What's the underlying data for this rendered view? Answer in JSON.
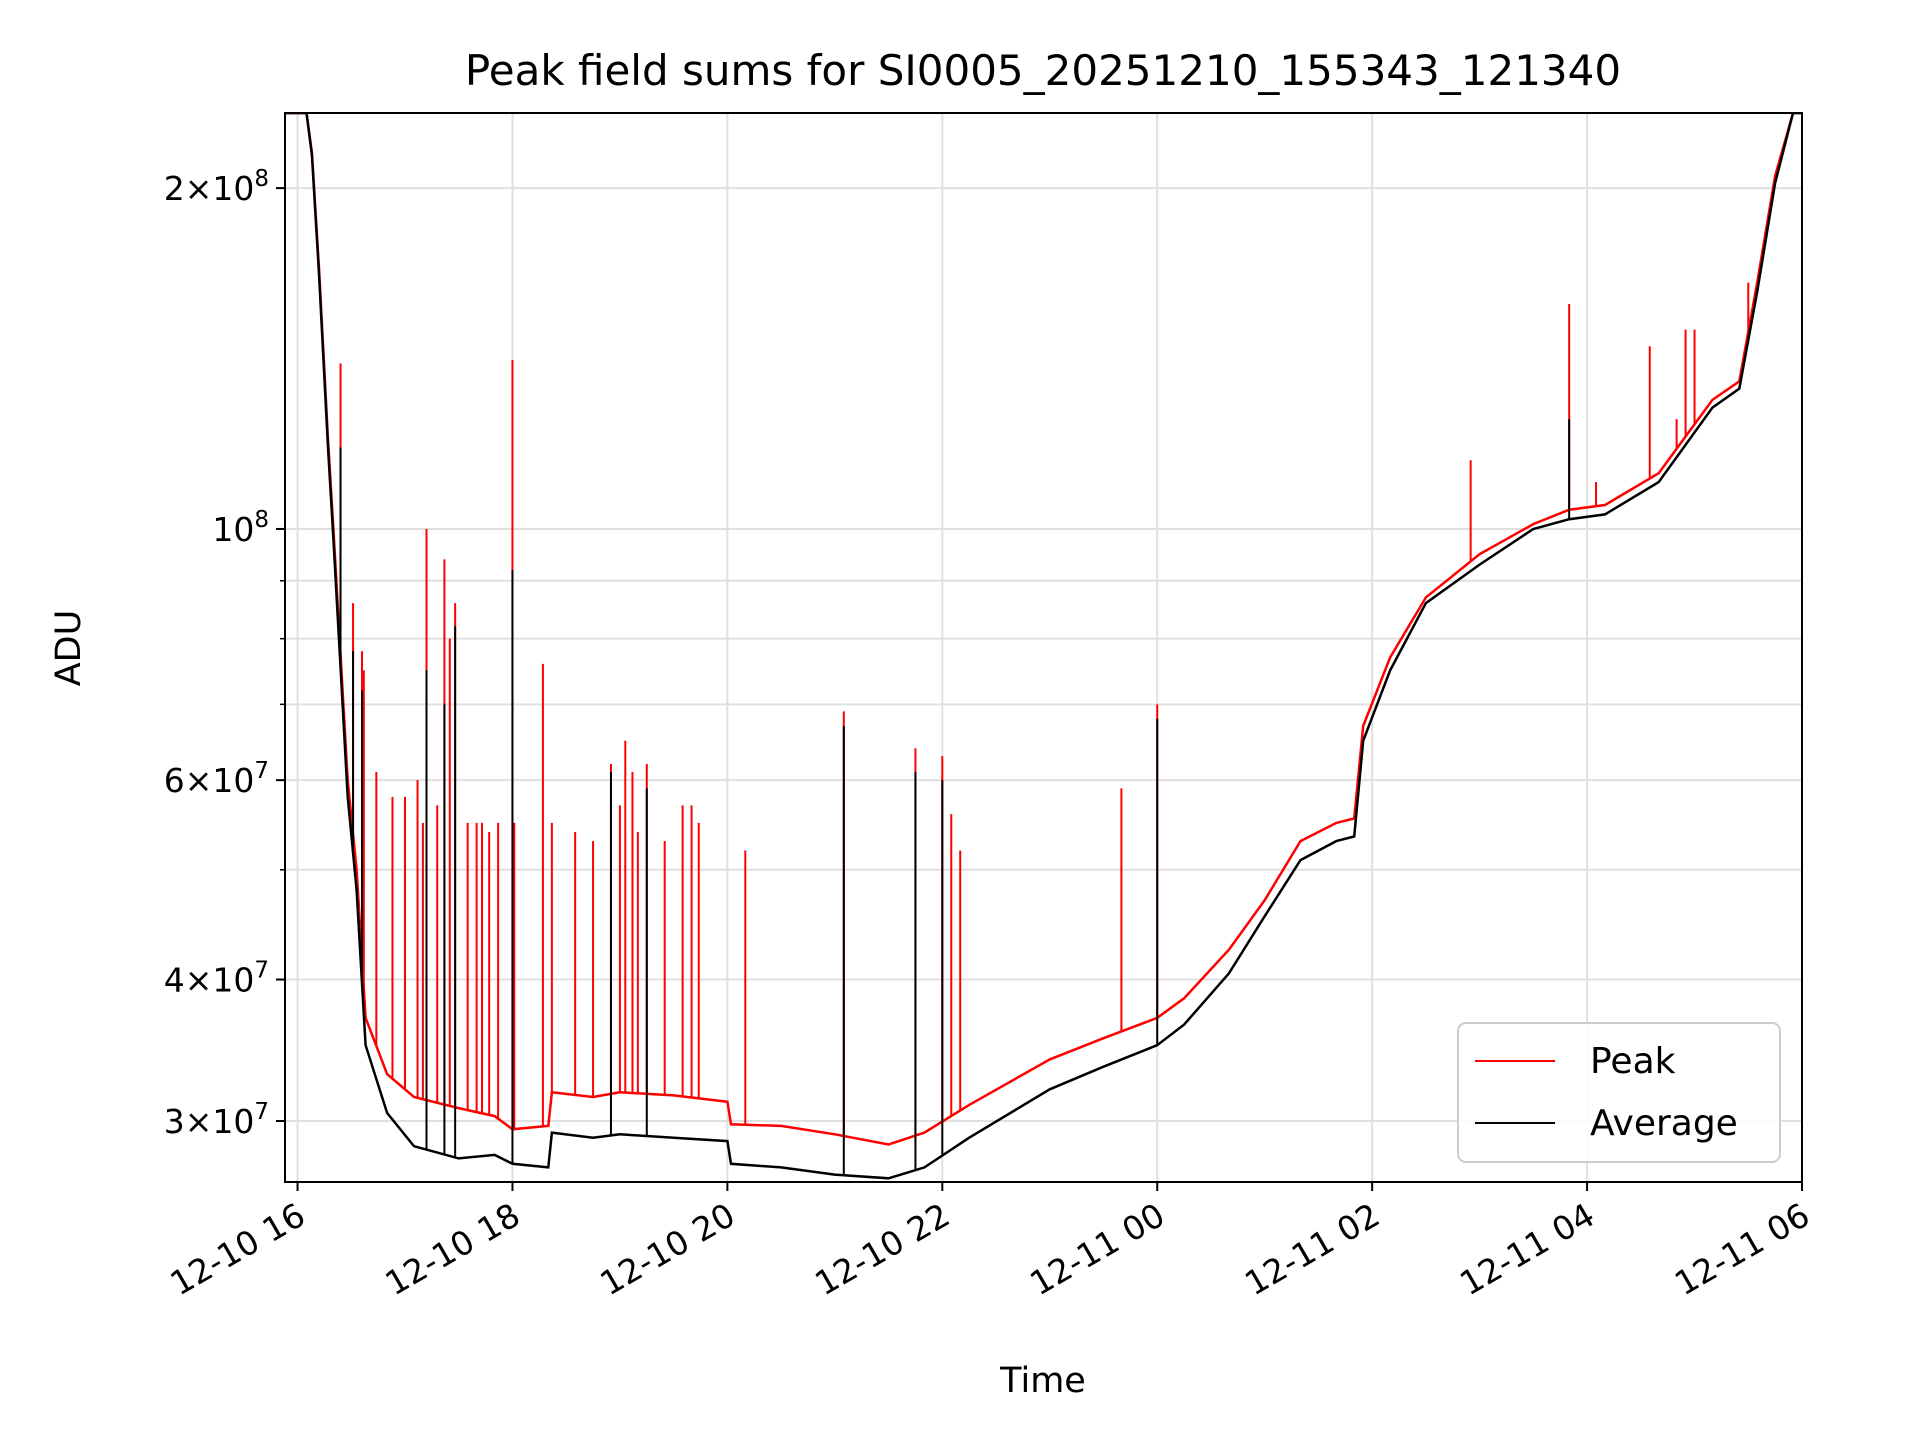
{
  "chart_data": {
    "type": "line",
    "title": "Peak field sums for SI0005_20251210_155343_121340",
    "xlabel": "Time",
    "ylabel": "ADU",
    "yscale": "log",
    "ylim": [
      26500000,
      233000000
    ],
    "xlim": [
      "2025-12-10T15:53",
      "2025-12-11T06:00"
    ],
    "grid": true,
    "legend_position": "lower right",
    "x_ticks": [
      "2025-12-10T16:00",
      "2025-12-10T18:00",
      "2025-12-10T20:00",
      "2025-12-10T22:00",
      "2025-12-11T00:00",
      "2025-12-11T02:00",
      "2025-12-11T04:00",
      "2025-12-11T06:00"
    ],
    "x_tick_labels": [
      "12-10 16",
      "12-10 18",
      "12-10 20",
      "12-10 22",
      "12-11 00",
      "12-11 02",
      "12-11 04",
      "12-11 06"
    ],
    "y_ticks": [
      {
        "value": 30000000,
        "mantissa": "3",
        "exponent": "7"
      },
      {
        "value": 40000000,
        "mantissa": "4",
        "exponent": "7"
      },
      {
        "value": 60000000,
        "mantissa": "6",
        "exponent": "7"
      },
      {
        "value": 100000000,
        "mantissa": "",
        "exponent": "8"
      },
      {
        "value": 200000000,
        "mantissa": "2",
        "exponent": "8"
      }
    ],
    "y_minor_ticks": [
      50000000,
      70000000,
      80000000,
      90000000
    ],
    "colors": {
      "peak": "#ff0000",
      "average": "#000000",
      "grid": "#e0e0e0"
    },
    "series": [
      {
        "name": "Peak",
        "color": "#ff0000",
        "points": [
          [
            "2025-12-10T15:53",
            233000000
          ],
          [
            "2025-12-10T16:05",
            233000000
          ],
          [
            "2025-12-10T16:08",
            215000000
          ],
          [
            "2025-12-10T16:12",
            170000000
          ],
          [
            "2025-12-10T16:17",
            120000000
          ],
          [
            "2025-12-10T16:20",
            100000000
          ],
          [
            "2025-12-10T16:28",
            60000000
          ],
          [
            "2025-12-10T16:33",
            50000000
          ],
          [
            "2025-12-10T16:38",
            37000000
          ],
          [
            "2025-12-10T16:50",
            33000000
          ],
          [
            "2025-12-10T17:05",
            31500000
          ],
          [
            "2025-12-10T17:30",
            30800000
          ],
          [
            "2025-12-10T17:50",
            30300000
          ],
          [
            "2025-12-10T18:00",
            29500000
          ],
          [
            "2025-12-10T18:20",
            29700000
          ],
          [
            "2025-12-10T18:22",
            31800000
          ],
          [
            "2025-12-10T18:45",
            31500000
          ],
          [
            "2025-12-10T19:00",
            31800000
          ],
          [
            "2025-12-10T19:30",
            31600000
          ],
          [
            "2025-12-10T20:00",
            31200000
          ],
          [
            "2025-12-10T20:02",
            29800000
          ],
          [
            "2025-12-10T20:30",
            29700000
          ],
          [
            "2025-12-10T21:00",
            29200000
          ],
          [
            "2025-12-10T21:30",
            28600000
          ],
          [
            "2025-12-10T21:50",
            29300000
          ],
          [
            "2025-12-10T22:15",
            31000000
          ],
          [
            "2025-12-10T23:00",
            34000000
          ],
          [
            "2025-12-10T23:30",
            35500000
          ],
          [
            "2025-12-11T00:00",
            37000000
          ],
          [
            "2025-12-11T00:15",
            38500000
          ],
          [
            "2025-12-11T00:40",
            42500000
          ],
          [
            "2025-12-11T01:00",
            47000000
          ],
          [
            "2025-12-11T01:20",
            53000000
          ],
          [
            "2025-12-11T01:40",
            55000000
          ],
          [
            "2025-12-11T01:50",
            55500000
          ],
          [
            "2025-12-11T01:55",
            67000000
          ],
          [
            "2025-12-11T02:10",
            77000000
          ],
          [
            "2025-12-11T02:30",
            87000000
          ],
          [
            "2025-12-11T03:00",
            95000000
          ],
          [
            "2025-12-11T03:30",
            101000000
          ],
          [
            "2025-12-11T03:50",
            104000000
          ],
          [
            "2025-12-11T04:10",
            105000000
          ],
          [
            "2025-12-11T04:40",
            112000000
          ],
          [
            "2025-12-11T05:10",
            130000000
          ],
          [
            "2025-12-11T05:25",
            135000000
          ],
          [
            "2025-12-11T05:35",
            165000000
          ],
          [
            "2025-12-11T05:45",
            205000000
          ],
          [
            "2025-12-11T05:55",
            233000000
          ],
          [
            "2025-12-11T06:00",
            233000000
          ]
        ],
        "spikes": [
          [
            "2025-12-10T16:24",
            140000000
          ],
          [
            "2025-12-10T16:31",
            86000000
          ],
          [
            "2025-12-10T16:36",
            78000000
          ],
          [
            "2025-12-10T16:37",
            75000000
          ],
          [
            "2025-12-10T16:44",
            61000000
          ],
          [
            "2025-12-10T16:53",
            58000000
          ],
          [
            "2025-12-10T17:00",
            58000000
          ],
          [
            "2025-12-10T17:07",
            60000000
          ],
          [
            "2025-12-10T17:10",
            55000000
          ],
          [
            "2025-12-10T17:12",
            100000000
          ],
          [
            "2025-12-10T17:18",
            57000000
          ],
          [
            "2025-12-10T17:22",
            94000000
          ],
          [
            "2025-12-10T17:25",
            80000000
          ],
          [
            "2025-12-10T17:28",
            86000000
          ],
          [
            "2025-12-10T17:35",
            55000000
          ],
          [
            "2025-12-10T17:40",
            55000000
          ],
          [
            "2025-12-10T17:43",
            55000000
          ],
          [
            "2025-12-10T17:47",
            54000000
          ],
          [
            "2025-12-10T17:52",
            55000000
          ],
          [
            "2025-12-10T18:00",
            141000000
          ],
          [
            "2025-12-10T18:01",
            55000000
          ],
          [
            "2025-12-10T18:17",
            76000000
          ],
          [
            "2025-12-10T18:22",
            55000000
          ],
          [
            "2025-12-10T18:35",
            54000000
          ],
          [
            "2025-12-10T18:45",
            53000000
          ],
          [
            "2025-12-10T18:55",
            62000000
          ],
          [
            "2025-12-10T19:00",
            57000000
          ],
          [
            "2025-12-10T19:03",
            65000000
          ],
          [
            "2025-12-10T19:07",
            61000000
          ],
          [
            "2025-12-10T19:10",
            54000000
          ],
          [
            "2025-12-10T19:15",
            62000000
          ],
          [
            "2025-12-10T19:25",
            53000000
          ],
          [
            "2025-12-10T19:35",
            57000000
          ],
          [
            "2025-12-10T19:40",
            57000000
          ],
          [
            "2025-12-10T19:44",
            55000000
          ],
          [
            "2025-12-10T20:10",
            52000000
          ],
          [
            "2025-12-10T21:05",
            69000000
          ],
          [
            "2025-12-10T21:45",
            64000000
          ],
          [
            "2025-12-10T22:00",
            63000000
          ],
          [
            "2025-12-10T22:05",
            56000000
          ],
          [
            "2025-12-10T22:10",
            52000000
          ],
          [
            "2025-12-10T23:40",
            59000000
          ],
          [
            "2025-12-11T00:00",
            70000000
          ],
          [
            "2025-12-11T02:55",
            115000000
          ],
          [
            "2025-12-11T03:50",
            158000000
          ],
          [
            "2025-12-11T04:05",
            110000000
          ],
          [
            "2025-12-11T04:35",
            145000000
          ],
          [
            "2025-12-11T04:50",
            125000000
          ],
          [
            "2025-12-11T04:55",
            150000000
          ],
          [
            "2025-12-11T05:00",
            150000000
          ],
          [
            "2025-12-11T05:30",
            165000000
          ]
        ]
      },
      {
        "name": "Average",
        "color": "#000000",
        "points": [
          [
            "2025-12-10T15:53",
            233000000
          ],
          [
            "2025-12-10T16:05",
            233000000
          ],
          [
            "2025-12-10T16:08",
            214000000
          ],
          [
            "2025-12-10T16:12",
            168000000
          ],
          [
            "2025-12-10T16:17",
            118000000
          ],
          [
            "2025-12-10T16:20",
            98000000
          ],
          [
            "2025-12-10T16:28",
            58000000
          ],
          [
            "2025-12-10T16:33",
            48000000
          ],
          [
            "2025-12-10T16:38",
            35000000
          ],
          [
            "2025-12-10T16:50",
            30500000
          ],
          [
            "2025-12-10T17:05",
            28500000
          ],
          [
            "2025-12-10T17:30",
            27800000
          ],
          [
            "2025-12-10T17:50",
            28000000
          ],
          [
            "2025-12-10T18:00",
            27500000
          ],
          [
            "2025-12-10T18:20",
            27300000
          ],
          [
            "2025-12-10T18:22",
            29300000
          ],
          [
            "2025-12-10T18:45",
            29000000
          ],
          [
            "2025-12-10T19:00",
            29200000
          ],
          [
            "2025-12-10T19:30",
            29000000
          ],
          [
            "2025-12-10T20:00",
            28800000
          ],
          [
            "2025-12-10T20:02",
            27500000
          ],
          [
            "2025-12-10T20:30",
            27300000
          ],
          [
            "2025-12-10T21:00",
            26900000
          ],
          [
            "2025-12-10T21:30",
            26700000
          ],
          [
            "2025-12-10T21:50",
            27300000
          ],
          [
            "2025-12-10T22:15",
            29000000
          ],
          [
            "2025-12-10T23:00",
            32000000
          ],
          [
            "2025-12-10T23:30",
            33500000
          ],
          [
            "2025-12-11T00:00",
            35000000
          ],
          [
            "2025-12-11T00:15",
            36500000
          ],
          [
            "2025-12-11T00:40",
            40500000
          ],
          [
            "2025-12-11T01:00",
            45500000
          ],
          [
            "2025-12-11T01:20",
            51000000
          ],
          [
            "2025-12-11T01:40",
            53000000
          ],
          [
            "2025-12-11T01:50",
            53500000
          ],
          [
            "2025-12-11T01:55",
            65000000
          ],
          [
            "2025-12-11T02:10",
            75000000
          ],
          [
            "2025-12-11T02:30",
            86000000
          ],
          [
            "2025-12-11T03:00",
            93000000
          ],
          [
            "2025-12-11T03:30",
            100000000
          ],
          [
            "2025-12-11T03:50",
            102000000
          ],
          [
            "2025-12-11T04:10",
            103000000
          ],
          [
            "2025-12-11T04:40",
            110000000
          ],
          [
            "2025-12-11T05:10",
            128000000
          ],
          [
            "2025-12-11T05:25",
            133000000
          ],
          [
            "2025-12-11T05:35",
            162000000
          ],
          [
            "2025-12-11T05:45",
            202000000
          ],
          [
            "2025-12-11T05:55",
            233000000
          ],
          [
            "2025-12-11T06:00",
            233000000
          ]
        ],
        "spikes": [
          [
            "2025-12-10T16:24",
            118000000
          ],
          [
            "2025-12-10T16:31",
            78000000
          ],
          [
            "2025-12-10T16:36",
            72000000
          ],
          [
            "2025-12-10T17:12",
            75000000
          ],
          [
            "2025-12-10T17:22",
            70000000
          ],
          [
            "2025-12-10T17:28",
            82000000
          ],
          [
            "2025-12-10T18:00",
            92000000
          ],
          [
            "2025-12-10T18:55",
            61000000
          ],
          [
            "2025-12-10T19:15",
            59000000
          ],
          [
            "2025-12-10T21:05",
            67000000
          ],
          [
            "2025-12-10T21:45",
            61000000
          ],
          [
            "2025-12-10T22:00",
            60000000
          ],
          [
            "2025-12-11T00:00",
            68000000
          ],
          [
            "2025-12-11T03:50",
            125000000
          ]
        ]
      }
    ]
  }
}
